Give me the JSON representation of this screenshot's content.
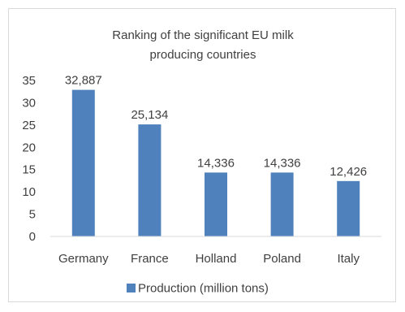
{
  "chart_data": {
    "type": "bar",
    "title": "Ranking of the significant EU milk producing countries",
    "title_lines": [
      "Ranking of the significant EU milk",
      "producing countries"
    ],
    "categories": [
      "Germany",
      "France",
      "Holland",
      "Poland",
      "Italy"
    ],
    "series": [
      {
        "name": "Production (million tons)",
        "values": [
          32.887,
          25.134,
          14.336,
          14.336,
          12.426
        ]
      }
    ],
    "data_labels": [
      "32,887",
      "25,134",
      "14,336",
      "14,336",
      "12,426"
    ],
    "ylim": [
      0,
      35
    ],
    "yticks": [
      0,
      5,
      10,
      15,
      20,
      25,
      30,
      35
    ],
    "xlabel": "",
    "ylabel": "",
    "grid": false,
    "legend_position": "bottom",
    "bar_color": "#4f81bd",
    "axis_color": "#d9d9d9"
  }
}
